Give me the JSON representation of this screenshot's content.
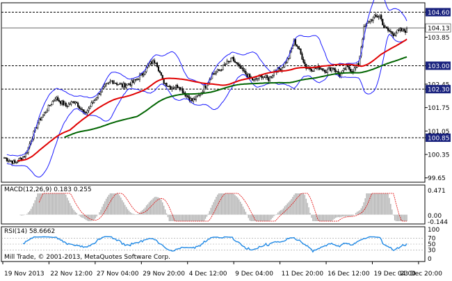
{
  "chart_data": {
    "type": "candlestick",
    "main_panel": {
      "y_axis_ticks": [
        "104.60",
        "104.13",
        "103.85",
        "103.00",
        "102.45",
        "102.30",
        "101.75",
        "101.05",
        "100.85",
        "100.35",
        "99.65"
      ],
      "current_price": "104.13",
      "horizontal_levels": [
        {
          "label": "104.60",
          "value": 104.6,
          "style": "dashed"
        },
        {
          "label": "103.00",
          "value": 103.0,
          "style": "dashed"
        },
        {
          "label": "102.30",
          "value": 102.3,
          "style": "dashed"
        },
        {
          "label": "100.85",
          "value": 100.85,
          "style": "dashed"
        }
      ],
      "indicators": [
        "Bollinger Bands (blue)",
        "Moving average (red)",
        "Moving average (green)"
      ],
      "colors": {
        "candles": "#000000",
        "bands": "#1a1aff",
        "ma_fast": "#e00000",
        "ma_slow": "#006400",
        "level_label_bg": "#1a237e"
      },
      "close_path": [
        [
          0,
          100.25
        ],
        [
          8,
          100.1
        ],
        [
          16,
          100.35
        ],
        [
          25,
          101.3
        ],
        [
          33,
          101.75
        ],
        [
          38,
          102.05
        ],
        [
          46,
          101.8
        ],
        [
          53,
          101.95
        ],
        [
          60,
          101.55
        ],
        [
          65,
          101.85
        ],
        [
          72,
          102.25
        ],
        [
          80,
          102.55
        ],
        [
          88,
          102.4
        ],
        [
          96,
          102.5
        ],
        [
          103,
          102.75
        ],
        [
          108,
          103.05
        ],
        [
          113,
          103.15
        ],
        [
          118,
          102.55
        ],
        [
          124,
          102.35
        ],
        [
          130,
          102.4
        ],
        [
          135,
          102.15
        ],
        [
          140,
          101.95
        ],
        [
          145,
          102.1
        ],
        [
          150,
          102.4
        ],
        [
          155,
          102.75
        ],
        [
          160,
          102.85
        ],
        [
          165,
          103.05
        ],
        [
          170,
          103.2
        ],
        [
          175,
          102.95
        ],
        [
          180,
          102.75
        ],
        [
          186,
          102.55
        ],
        [
          192,
          102.7
        ],
        [
          197,
          102.6
        ],
        [
          202,
          102.85
        ],
        [
          207,
          102.95
        ],
        [
          212,
          103.25
        ],
        [
          216,
          103.75
        ],
        [
          220,
          103.45
        ],
        [
          225,
          102.95
        ],
        [
          230,
          102.9
        ],
        [
          235,
          102.95
        ],
        [
          240,
          102.85
        ],
        [
          245,
          102.95
        ],
        [
          250,
          102.7
        ],
        [
          255,
          102.95
        ],
        [
          260,
          102.85
        ],
        [
          264,
          103.05
        ],
        [
          268,
          104.1
        ],
        [
          272,
          104.35
        ],
        [
          276,
          104.45
        ],
        [
          280,
          104.5
        ],
        [
          283,
          104.15
        ],
        [
          286,
          104.05
        ],
        [
          290,
          103.95
        ],
        [
          295,
          104.05
        ]
      ]
    },
    "x_axis_labels": [
      "19 Nov 2013",
      "22 Nov 12:00",
      "27 Nov 04:00",
      "29 Nov 20:00",
      "4 Dec 12:00",
      "9 Dec 04:00",
      "11 Dec 20:00",
      "16 Dec 12:00",
      "19 Dec 04:00",
      "23 Dec 20:00"
    ],
    "macd_panel": {
      "title": "MACD(12,26,9) 0.183 0.255",
      "y_axis_ticks": [
        "0.471",
        "0.00",
        "-0.144"
      ],
      "colors": {
        "histogram": "#b0b0b0",
        "signal": "#e00000"
      }
    },
    "rsi_panel": {
      "title": "RSI(14) 58.6662",
      "y_axis_ticks": [
        "100",
        "70",
        "50",
        "30",
        "0"
      ],
      "colors": {
        "line": "#1e88e5"
      }
    },
    "footer": "Mill Trade, © 2001-2013, MetaQuotes Software Corp."
  }
}
